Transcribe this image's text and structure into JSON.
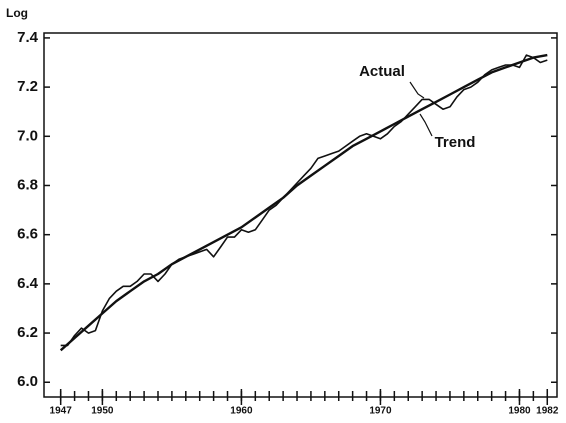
{
  "chart_data": {
    "type": "line",
    "y_label": "Log",
    "xlim": [
      1945.8,
      1982.7
    ],
    "ylim": [
      5.94,
      7.42
    ],
    "xticks": [
      1947,
      1950,
      1960,
      1970,
      1980,
      1982
    ],
    "xminorticks": [
      1947,
      1948,
      1949,
      1950,
      1951,
      1952,
      1953,
      1954,
      1955,
      1956,
      1957,
      1958,
      1959,
      1960,
      1961,
      1962,
      1963,
      1964,
      1965,
      1966,
      1967,
      1968,
      1969,
      1970,
      1971,
      1972,
      1973,
      1974,
      1975,
      1976,
      1977,
      1978,
      1979,
      1980,
      1981,
      1982
    ],
    "yticks": [
      {
        "value": 6.0,
        "label": "6.0"
      },
      {
        "value": 6.2,
        "label": "6.2"
      },
      {
        "value": 6.4,
        "label": "6.4"
      },
      {
        "value": 6.6,
        "label": "6.6"
      },
      {
        "value": 6.8,
        "label": "6.8"
      },
      {
        "value": 7.0,
        "label": "7.0"
      },
      {
        "value": 7.2,
        "label": "7.2"
      },
      {
        "value": 7.4,
        "label": "7.4"
      }
    ],
    "series": [
      {
        "name": "Actual",
        "color": "#111111",
        "x": [
          1947,
          1947.5,
          1948,
          1948.5,
          1949,
          1949.5,
          1950,
          1950.5,
          1951,
          1951.5,
          1952,
          1952.5,
          1953,
          1953.5,
          1954,
          1954.5,
          1955,
          1955.5,
          1956,
          1956.5,
          1957,
          1957.5,
          1958,
          1958.5,
          1959,
          1959.5,
          1960,
          1960.5,
          1961,
          1961.5,
          1962,
          1962.5,
          1963,
          1963.5,
          1964,
          1964.5,
          1965,
          1965.5,
          1966,
          1966.5,
          1967,
          1967.5,
          1968,
          1968.5,
          1969,
          1969.5,
          1970,
          1970.5,
          1971,
          1971.5,
          1972,
          1972.5,
          1973,
          1973.5,
          1974,
          1974.5,
          1975,
          1975.5,
          1976,
          1976.5,
          1977,
          1977.5,
          1978,
          1978.5,
          1979,
          1979.5,
          1980,
          1980.5,
          1981,
          1981.5,
          1982
        ],
        "values": [
          6.15,
          6.15,
          6.19,
          6.22,
          6.2,
          6.21,
          6.29,
          6.34,
          6.37,
          6.39,
          6.39,
          6.41,
          6.44,
          6.44,
          6.41,
          6.44,
          6.48,
          6.5,
          6.51,
          6.52,
          6.53,
          6.54,
          6.51,
          6.55,
          6.59,
          6.59,
          6.62,
          6.61,
          6.62,
          6.66,
          6.7,
          6.72,
          6.75,
          6.78,
          6.81,
          6.84,
          6.87,
          6.91,
          6.92,
          6.93,
          6.94,
          6.96,
          6.98,
          7.0,
          7.01,
          7.0,
          6.99,
          7.01,
          7.04,
          7.06,
          7.09,
          7.12,
          7.15,
          7.15,
          7.13,
          7.11,
          7.12,
          7.16,
          7.19,
          7.2,
          7.22,
          7.25,
          7.27,
          7.28,
          7.29,
          7.29,
          7.28,
          7.33,
          7.32,
          7.3,
          7.31
        ]
      },
      {
        "name": "Trend",
        "color": "#111111",
        "x": [
          1947,
          1948,
          1949,
          1950,
          1951,
          1952,
          1953,
          1954,
          1955,
          1956,
          1957,
          1958,
          1959,
          1960,
          1961,
          1962,
          1963,
          1964,
          1965,
          1966,
          1967,
          1968,
          1969,
          1970,
          1971,
          1972,
          1973,
          1974,
          1975,
          1976,
          1977,
          1978,
          1979,
          1980,
          1981,
          1982
        ],
        "values": [
          6.13,
          6.18,
          6.23,
          6.28,
          6.33,
          6.37,
          6.41,
          6.44,
          6.48,
          6.51,
          6.54,
          6.57,
          6.6,
          6.63,
          6.67,
          6.71,
          6.75,
          6.8,
          6.84,
          6.88,
          6.92,
          6.96,
          6.99,
          7.02,
          7.05,
          7.08,
          7.11,
          7.14,
          7.17,
          7.2,
          7.23,
          7.26,
          7.28,
          7.3,
          7.32,
          7.33
        ]
      }
    ]
  }
}
